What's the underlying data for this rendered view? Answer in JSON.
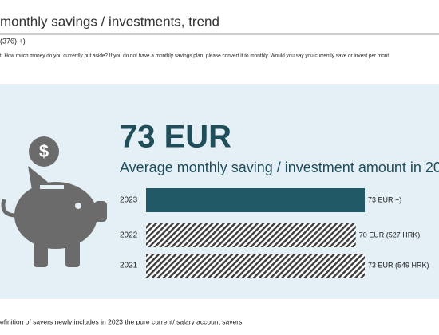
{
  "chart_data": {
    "type": "bar",
    "orientation": "horizontal",
    "title": "monthly savings / investments, trend",
    "base": "(376) +)",
    "question": "t: How much money do you currently put aside? If you do not have a monthly savings plan, please convert it to monthly. Would you say you currently save or invest per mont",
    "headline": "73 EUR",
    "subtitle": "Average monthly saving / investment amount in 20",
    "categories": [
      "2023",
      "2022",
      "2021"
    ],
    "values": [
      73,
      70,
      73
    ],
    "value_labels": [
      "73 EUR +)",
      "70 EUR (527 HRK)",
      "73 EUR (549 HRK)"
    ],
    "colors": [
      "#215a66",
      "#3c3c3c",
      "#3c3c3c"
    ],
    "hatched": [
      false,
      true,
      true
    ],
    "icon_label": "$",
    "footnote": "efinition of savers newly includes in 2023 the pure current/ salary account savers"
  }
}
